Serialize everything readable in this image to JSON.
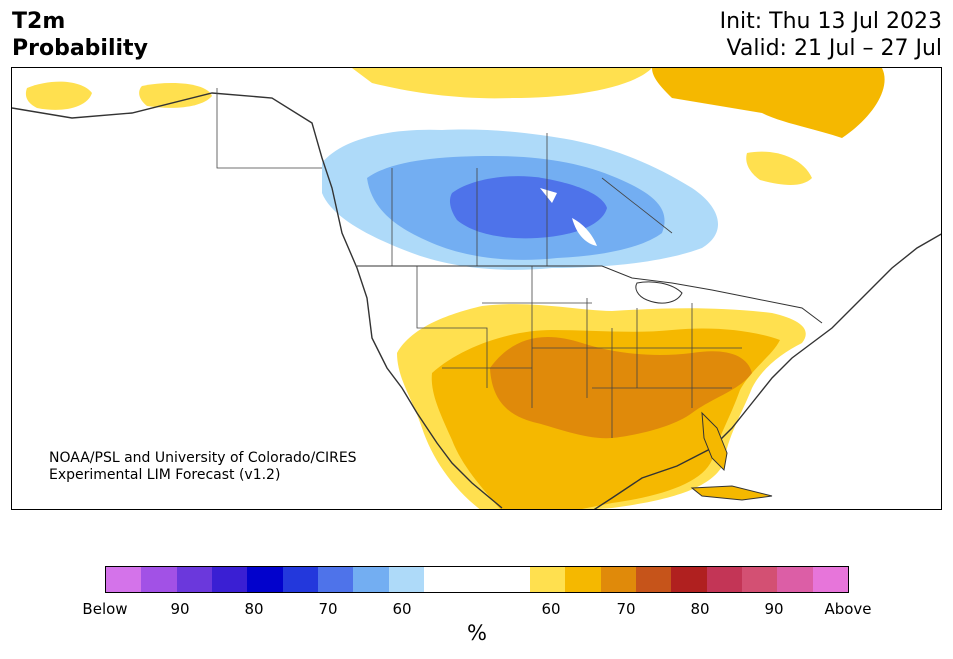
{
  "header": {
    "title_line1": "T2m",
    "title_line2": "Probability",
    "init": "Init: Thu 13 Jul 2023",
    "valid": "Valid: 21 Jul – 27 Jul"
  },
  "credit": {
    "line1": "NOAA/PSL and University of Colorado/CIRES",
    "line2": "Experimental LIM Forecast (v1.2)"
  },
  "colorbar": {
    "colors": [
      "#d473ea",
      "#a251e6",
      "#6b38dc",
      "#3a1fd3",
      "#0202cc",
      "#2338dc",
      "#4e73ea",
      "#73aef2",
      "#aedaf9",
      "#ffffff",
      "#ffffff",
      "#ffffff",
      "#ffe04f",
      "#f5b800",
      "#e08a0a",
      "#c6541a",
      "#b0201f",
      "#c33556",
      "#d35073",
      "#dc5ea6",
      "#e775da"
    ],
    "ticks": [
      "Below",
      "90",
      "80",
      "70",
      "60",
      "60",
      "70",
      "80",
      "90",
      "Above"
    ],
    "unit": "%"
  },
  "legend_colors": {
    "cold_light": "#aedaf9",
    "cold_mid": "#73aef2",
    "cold_dark": "#4e73ea",
    "warm_light": "#ffe04f",
    "warm_mid": "#f5b800",
    "warm_dark": "#e08a0a"
  }
}
